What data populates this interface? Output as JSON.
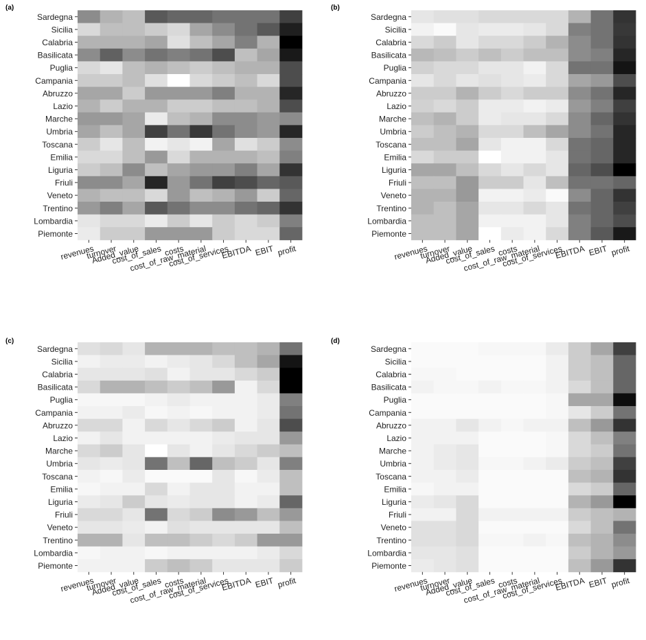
{
  "figure": {
    "row_labels": [
      "Sardegna",
      "Sicilia",
      "Calabria",
      "Basilicata",
      "Puglia",
      "Campania",
      "Abruzzo",
      "Lazio",
      "Marche",
      "Umbria",
      "Toscana",
      "Emilia",
      "Liguria",
      "Friuli",
      "Veneto",
      "Trentino",
      "Lombardia",
      "Piemonte"
    ],
    "column_labels": [
      "revenues",
      "turnover",
      "Added_value",
      "cost_of_sales",
      "costs",
      "cost_of_raw_material",
      "cost_of_services",
      "EBITDA",
      "EBIT",
      "profit"
    ]
  },
  "chart_data": [
    {
      "type": "heatmap",
      "panel_label": "(a)",
      "value_scale": "grayscale intensity 0 (white) to 1 (black)",
      "x": [
        "revenues",
        "turnover",
        "Added_value",
        "cost_of_sales",
        "costs",
        "cost_of_raw_material",
        "cost_of_services",
        "EBITDA",
        "EBIT",
        "profit"
      ],
      "y": [
        "Sardegna",
        "Sicilia",
        "Calabria",
        "Basilicata",
        "Puglia",
        "Campania",
        "Abruzzo",
        "Lazio",
        "Marche",
        "Umbria",
        "Toscana",
        "Emilia",
        "Liguria",
        "Friuli",
        "Veneto",
        "Trentino",
        "Lombardia",
        "Piemonte"
      ],
      "values": [
        [
          0.45,
          0.3,
          0.25,
          0.65,
          0.6,
          0.6,
          0.55,
          0.55,
          0.55,
          0.75
        ],
        [
          0.15,
          0.25,
          0.25,
          0.2,
          0.15,
          0.35,
          0.45,
          0.55,
          0.65,
          0.88
        ],
        [
          0.3,
          0.3,
          0.3,
          0.35,
          0.12,
          0.25,
          0.35,
          0.5,
          0.3,
          1.0
        ],
        [
          0.45,
          0.62,
          0.45,
          0.55,
          0.5,
          0.55,
          0.7,
          0.25,
          0.35,
          0.9
        ],
        [
          0.15,
          0.1,
          0.25,
          0.3,
          0.25,
          0.2,
          0.25,
          0.3,
          0.3,
          0.7
        ],
        [
          0.2,
          0.2,
          0.25,
          0.12,
          0.0,
          0.15,
          0.2,
          0.25,
          0.15,
          0.7
        ],
        [
          0.35,
          0.35,
          0.2,
          0.4,
          0.4,
          0.4,
          0.5,
          0.3,
          0.3,
          0.85
        ],
        [
          0.3,
          0.2,
          0.3,
          0.3,
          0.2,
          0.2,
          0.25,
          0.25,
          0.3,
          0.7
        ],
        [
          0.4,
          0.4,
          0.35,
          0.08,
          0.25,
          0.3,
          0.45,
          0.45,
          0.4,
          0.45
        ],
        [
          0.35,
          0.25,
          0.35,
          0.75,
          0.55,
          0.78,
          0.55,
          0.45,
          0.4,
          0.85
        ],
        [
          0.2,
          0.1,
          0.25,
          0.05,
          0.1,
          0.05,
          0.35,
          0.12,
          0.2,
          0.45
        ],
        [
          0.15,
          0.15,
          0.25,
          0.4,
          0.15,
          0.3,
          0.3,
          0.3,
          0.25,
          0.5
        ],
        [
          0.2,
          0.25,
          0.45,
          0.25,
          0.35,
          0.4,
          0.4,
          0.5,
          0.35,
          0.8
        ],
        [
          0.45,
          0.45,
          0.35,
          0.85,
          0.4,
          0.55,
          0.75,
          0.7,
          0.6,
          0.65
        ],
        [
          0.3,
          0.25,
          0.25,
          0.15,
          0.4,
          0.25,
          0.3,
          0.4,
          0.2,
          0.6
        ],
        [
          0.4,
          0.5,
          0.35,
          0.65,
          0.55,
          0.45,
          0.45,
          0.55,
          0.6,
          0.8
        ],
        [
          0.1,
          0.15,
          0.15,
          0.08,
          0.2,
          0.1,
          0.2,
          0.15,
          0.2,
          0.5
        ],
        [
          0.08,
          0.2,
          0.2,
          0.4,
          0.4,
          0.4,
          0.2,
          0.15,
          0.15,
          0.6
        ]
      ]
    },
    {
      "type": "heatmap",
      "panel_label": "(b)",
      "value_scale": "grayscale intensity 0 (white) to 1 (black)",
      "x": [
        "revenues",
        "turnover",
        "Added_value",
        "cost_of_sales",
        "costs",
        "cost_of_raw_material",
        "cost_of_services",
        "EBITDA",
        "EBIT",
        "profit"
      ],
      "y": [
        "Sardegna",
        "Sicilia",
        "Calabria",
        "Basilicata",
        "Puglia",
        "Campania",
        "Abruzzo",
        "Lazio",
        "Marche",
        "Umbria",
        "Toscana",
        "Emilia",
        "Liguria",
        "Friuli",
        "Veneto",
        "Trentino",
        "Lombardia",
        "Piemonte"
      ],
      "values": [
        [
          0.1,
          0.12,
          0.12,
          0.15,
          0.15,
          0.15,
          0.15,
          0.3,
          0.55,
          0.8
        ],
        [
          0.05,
          0.02,
          0.1,
          0.08,
          0.08,
          0.1,
          0.15,
          0.5,
          0.55,
          0.78
        ],
        [
          0.15,
          0.2,
          0.1,
          0.15,
          0.15,
          0.2,
          0.3,
          0.45,
          0.55,
          0.8
        ],
        [
          0.28,
          0.25,
          0.2,
          0.25,
          0.2,
          0.25,
          0.25,
          0.45,
          0.5,
          0.85
        ],
        [
          0.18,
          0.15,
          0.15,
          0.1,
          0.1,
          0.05,
          0.15,
          0.55,
          0.55,
          0.92
        ],
        [
          0.1,
          0.15,
          0.1,
          0.12,
          0.1,
          0.08,
          0.15,
          0.35,
          0.4,
          0.7
        ],
        [
          0.2,
          0.2,
          0.3,
          0.2,
          0.15,
          0.2,
          0.2,
          0.45,
          0.55,
          0.85
        ],
        [
          0.18,
          0.15,
          0.2,
          0.08,
          0.08,
          0.05,
          0.08,
          0.4,
          0.5,
          0.75
        ],
        [
          0.25,
          0.3,
          0.2,
          0.08,
          0.1,
          0.1,
          0.15,
          0.45,
          0.6,
          0.8
        ],
        [
          0.2,
          0.25,
          0.3,
          0.15,
          0.15,
          0.25,
          0.35,
          0.45,
          0.55,
          0.85
        ],
        [
          0.25,
          0.25,
          0.35,
          0.1,
          0.05,
          0.05,
          0.15,
          0.55,
          0.6,
          0.85
        ],
        [
          0.15,
          0.2,
          0.2,
          0.0,
          0.05,
          0.05,
          0.1,
          0.55,
          0.6,
          0.85
        ],
        [
          0.35,
          0.35,
          0.25,
          0.15,
          0.1,
          0.15,
          0.1,
          0.6,
          0.7,
          1.0
        ],
        [
          0.25,
          0.25,
          0.4,
          0.2,
          0.2,
          0.1,
          0.25,
          0.55,
          0.55,
          0.6
        ],
        [
          0.3,
          0.3,
          0.4,
          0.05,
          0.05,
          0.08,
          0.02,
          0.45,
          0.6,
          0.8
        ],
        [
          0.3,
          0.25,
          0.35,
          0.1,
          0.1,
          0.15,
          0.1,
          0.55,
          0.6,
          0.75
        ],
        [
          0.25,
          0.25,
          0.35,
          0.05,
          0.05,
          0.05,
          0.1,
          0.5,
          0.6,
          0.7
        ],
        [
          0.25,
          0.25,
          0.35,
          0.0,
          0.08,
          0.05,
          0.15,
          0.5,
          0.65,
          0.9
        ]
      ]
    },
    {
      "type": "heatmap",
      "panel_label": "(c)",
      "value_scale": "grayscale intensity 0 (white) to 1 (black)",
      "x": [
        "revenues",
        "turnover",
        "Added_value",
        "cost_of_sales",
        "costs",
        "cost_of_raw_material",
        "cost_of_services",
        "EBITDA",
        "EBIT",
        "profit"
      ],
      "y": [
        "Sardegna",
        "Sicilia",
        "Calabria",
        "Basilicata",
        "Puglia",
        "Campania",
        "Abruzzo",
        "Lazio",
        "Marche",
        "Umbria",
        "Toscana",
        "Emilia",
        "Liguria",
        "Friuli",
        "Veneto",
        "Trentino",
        "Lombardia",
        "Piemonte"
      ],
      "values": [
        [
          0.12,
          0.15,
          0.1,
          0.3,
          0.3,
          0.3,
          0.25,
          0.25,
          0.3,
          0.55
        ],
        [
          0.05,
          0.08,
          0.08,
          0.05,
          0.08,
          0.1,
          0.15,
          0.25,
          0.35,
          0.92
        ],
        [
          0.1,
          0.1,
          0.1,
          0.12,
          0.05,
          0.1,
          0.1,
          0.15,
          0.2,
          1.0
        ],
        [
          0.15,
          0.3,
          0.3,
          0.25,
          0.2,
          0.25,
          0.4,
          0.05,
          0.15,
          1.0
        ],
        [
          0.03,
          0.03,
          0.03,
          0.05,
          0.08,
          0.05,
          0.05,
          0.05,
          0.08,
          0.5
        ],
        [
          0.05,
          0.05,
          0.08,
          0.03,
          0.05,
          0.03,
          0.05,
          0.05,
          0.08,
          0.55
        ],
        [
          0.15,
          0.15,
          0.05,
          0.15,
          0.1,
          0.15,
          0.2,
          0.05,
          0.1,
          0.7
        ],
        [
          0.05,
          0.1,
          0.05,
          0.05,
          0.05,
          0.05,
          0.08,
          0.1,
          0.1,
          0.4
        ],
        [
          0.15,
          0.2,
          0.1,
          0.0,
          0.1,
          0.05,
          0.1,
          0.15,
          0.2,
          0.25
        ],
        [
          0.1,
          0.08,
          0.1,
          0.55,
          0.25,
          0.6,
          0.25,
          0.2,
          0.1,
          0.5
        ],
        [
          0.05,
          0.03,
          0.08,
          0.02,
          0.02,
          0.02,
          0.1,
          0.03,
          0.08,
          0.25
        ],
        [
          0.03,
          0.05,
          0.05,
          0.15,
          0.05,
          0.1,
          0.1,
          0.05,
          0.05,
          0.25
        ],
        [
          0.08,
          0.1,
          0.2,
          0.1,
          0.08,
          0.1,
          0.1,
          0.05,
          0.08,
          0.6
        ],
        [
          0.15,
          0.15,
          0.1,
          0.55,
          0.15,
          0.2,
          0.45,
          0.4,
          0.25,
          0.4
        ],
        [
          0.1,
          0.1,
          0.08,
          0.05,
          0.12,
          0.1,
          0.1,
          0.1,
          0.1,
          0.25
        ],
        [
          0.3,
          0.3,
          0.1,
          0.25,
          0.25,
          0.2,
          0.15,
          0.2,
          0.4,
          0.4
        ],
        [
          0.03,
          0.05,
          0.05,
          0.03,
          0.05,
          0.05,
          0.05,
          0.05,
          0.08,
          0.15
        ],
        [
          0.05,
          0.05,
          0.05,
          0.2,
          0.25,
          0.2,
          0.1,
          0.1,
          0.1,
          0.2
        ]
      ]
    },
    {
      "type": "heatmap",
      "panel_label": "(d)",
      "value_scale": "grayscale intensity 0 (white) to 1 (black)",
      "x": [
        "revenues",
        "turnover",
        "Added_value",
        "cost_of_sales",
        "costs",
        "cost_of_raw_material",
        "cost_of_services",
        "EBITDA",
        "EBIT",
        "profit"
      ],
      "y": [
        "Sardegna",
        "Sicilia",
        "Calabria",
        "Basilicata",
        "Puglia",
        "Campania",
        "Abruzzo",
        "Lazio",
        "Marche",
        "Umbria",
        "Toscana",
        "Emilia",
        "Liguria",
        "Friuli",
        "Veneto",
        "Trentino",
        "Lombardia",
        "Piemonte"
      ],
      "values": [
        [
          0.02,
          0.02,
          0.02,
          0.03,
          0.03,
          0.03,
          0.08,
          0.2,
          0.35,
          0.75
        ],
        [
          0.02,
          0.02,
          0.02,
          0.02,
          0.02,
          0.02,
          0.05,
          0.2,
          0.25,
          0.6
        ],
        [
          0.03,
          0.03,
          0.02,
          0.02,
          0.02,
          0.02,
          0.05,
          0.2,
          0.25,
          0.6
        ],
        [
          0.05,
          0.03,
          0.03,
          0.05,
          0.03,
          0.03,
          0.05,
          0.15,
          0.25,
          0.6
        ],
        [
          0.02,
          0.02,
          0.02,
          0.02,
          0.02,
          0.02,
          0.03,
          0.35,
          0.35,
          0.95
        ],
        [
          0.02,
          0.02,
          0.02,
          0.02,
          0.02,
          0.02,
          0.03,
          0.1,
          0.2,
          0.55
        ],
        [
          0.05,
          0.05,
          0.1,
          0.05,
          0.03,
          0.05,
          0.05,
          0.25,
          0.4,
          0.8
        ],
        [
          0.05,
          0.05,
          0.05,
          0.02,
          0.02,
          0.02,
          0.03,
          0.15,
          0.25,
          0.5
        ],
        [
          0.05,
          0.08,
          0.1,
          0.02,
          0.02,
          0.02,
          0.03,
          0.15,
          0.2,
          0.55
        ],
        [
          0.05,
          0.08,
          0.1,
          0.03,
          0.03,
          0.05,
          0.08,
          0.2,
          0.25,
          0.75
        ],
        [
          0.05,
          0.05,
          0.08,
          0.02,
          0.02,
          0.02,
          0.02,
          0.25,
          0.3,
          0.8
        ],
        [
          0.03,
          0.05,
          0.05,
          0.02,
          0.02,
          0.02,
          0.02,
          0.15,
          0.2,
          0.6
        ],
        [
          0.08,
          0.1,
          0.15,
          0.02,
          0.02,
          0.02,
          0.02,
          0.3,
          0.4,
          1.0
        ],
        [
          0.05,
          0.05,
          0.15,
          0.05,
          0.05,
          0.05,
          0.05,
          0.2,
          0.25,
          0.3
        ],
        [
          0.12,
          0.12,
          0.15,
          0.02,
          0.02,
          0.02,
          0.02,
          0.15,
          0.25,
          0.55
        ],
        [
          0.12,
          0.12,
          0.15,
          0.03,
          0.03,
          0.05,
          0.03,
          0.25,
          0.3,
          0.45
        ],
        [
          0.1,
          0.1,
          0.12,
          0.02,
          0.02,
          0.02,
          0.02,
          0.2,
          0.3,
          0.4
        ],
        [
          0.08,
          0.1,
          0.12,
          0.02,
          0.02,
          0.02,
          0.02,
          0.25,
          0.4,
          0.8
        ]
      ]
    }
  ]
}
